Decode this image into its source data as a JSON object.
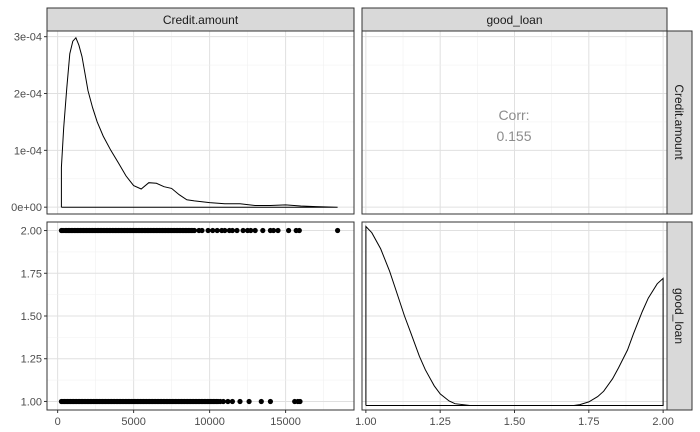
{
  "strip": {
    "col1": "Credit.amount",
    "col2": "good_loan",
    "row1": "Credit.amount",
    "row2": "good_loan"
  },
  "corr": {
    "label": "Corr:",
    "value": "0.155"
  },
  "axes": {
    "density_y_ticks": [
      "0e+00",
      "1e-04",
      "2e-04",
      "3e-04"
    ],
    "scatter_y_ticks": [
      "1.00",
      "1.25",
      "1.50",
      "1.75",
      "2.00"
    ],
    "credit_x_ticks": [
      "0",
      "5000",
      "10000",
      "15000"
    ],
    "goodloan_x_ticks": [
      "1.00",
      "1.25",
      "1.50",
      "1.75",
      "2.00"
    ]
  },
  "chart_data": [
    {
      "type": "line",
      "panel": "Credit.amount vs Credit.amount (density)",
      "x": [
        250,
        400,
        600,
        800,
        1000,
        1200,
        1400,
        1600,
        1800,
        2000,
        2300,
        2600,
        3000,
        3500,
        4000,
        4500,
        5000,
        5500,
        6000,
        6500,
        7000,
        7500,
        8000,
        8500,
        9000,
        10000,
        11000,
        12000,
        13000,
        14000,
        15000,
        16000,
        17000,
        18424
      ],
      "y": [
        7e-05,
        0.00014,
        0.00021,
        0.00027,
        0.000292,
        0.000298,
        0.000285,
        0.000265,
        0.000235,
        0.000205,
        0.000175,
        0.00015,
        0.000125,
        0.0001,
        7.8e-05,
        5.5e-05,
        3.8e-05,
        3.2e-05,
        4.3e-05,
        4.2e-05,
        3.6e-05,
        3.3e-05,
        2.2e-05,
        1.3e-05,
        1.1e-05,
        8e-06,
        6e-06,
        6e-06,
        3e-06,
        3e-06,
        4e-06,
        2e-06,
        1e-06,
        0.0
      ],
      "xlim": [
        -700,
        19500
      ],
      "ylim": [
        -1.2e-05,
        0.00031
      ]
    },
    {
      "type": "scatter",
      "panel": "good_loan vs Credit.amount",
      "series": [
        {
          "y": 2,
          "x": [
            250,
            350,
            500,
            600,
            700,
            800,
            900,
            1000,
            1100,
            1200,
            1300,
            1400,
            1500,
            1600,
            1700,
            1800,
            1900,
            2000,
            2100,
            2200,
            2300,
            2400,
            2500,
            2600,
            2700,
            2800,
            2900,
            3000,
            3100,
            3200,
            3300,
            3400,
            3500,
            3600,
            3700,
            3800,
            3900,
            4000,
            4100,
            4200,
            4300,
            4400,
            4500,
            4600,
            4700,
            4800,
            4900,
            5000,
            5100,
            5200,
            5300,
            5400,
            5500,
            5600,
            5700,
            5800,
            5900,
            6000,
            6100,
            6200,
            6300,
            6400,
            6500,
            6600,
            6700,
            6800,
            6900,
            7000,
            7100,
            7200,
            7300,
            7400,
            7500,
            7600,
            7700,
            7800,
            7900,
            8000,
            8100,
            8200,
            8300,
            8400,
            8500,
            8600,
            8700,
            8800,
            8900,
            9000,
            9300,
            9500,
            9900,
            10200,
            10500,
            10800,
            11000,
            11300,
            11500,
            11800,
            12200,
            12500,
            12700,
            13000,
            13500,
            14000,
            14200,
            14500,
            15200,
            15700,
            15900,
            18424
          ]
        },
        {
          "y": 1,
          "x": [
            250,
            350,
            450,
            550,
            650,
            750,
            850,
            950,
            1050,
            1150,
            1250,
            1350,
            1450,
            1550,
            1650,
            1750,
            1850,
            1950,
            2050,
            2150,
            2250,
            2350,
            2450,
            2550,
            2650,
            2750,
            2850,
            2950,
            3050,
            3150,
            3250,
            3350,
            3450,
            3550,
            3650,
            3750,
            3850,
            3950,
            4050,
            4150,
            4250,
            4350,
            4450,
            4550,
            4650,
            4750,
            4850,
            4950,
            5050,
            5150,
            5250,
            5350,
            5450,
            5550,
            5650,
            5750,
            5850,
            5950,
            6050,
            6150,
            6250,
            6350,
            6450,
            6550,
            6650,
            6750,
            6850,
            6950,
            7050,
            7150,
            7250,
            7350,
            7450,
            7550,
            7650,
            7750,
            7850,
            7950,
            8050,
            8150,
            8250,
            8350,
            8450,
            8550,
            8650,
            8750,
            8850,
            8950,
            9050,
            9150,
            9250,
            9350,
            9450,
            9550,
            9650,
            9750,
            9850,
            9950,
            10050,
            10150,
            10250,
            10350,
            10450,
            10550,
            10700,
            10900,
            11200,
            11500,
            12000,
            12600,
            13400,
            14000,
            15600,
            15800,
            15950
          ]
        }
      ],
      "xlim": [
        -700,
        19500
      ],
      "ylim": [
        0.95,
        2.05
      ]
    },
    {
      "type": "line",
      "panel": "good_loan vs good_loan (density)",
      "x": [
        1.0,
        1.02,
        1.05,
        1.08,
        1.1,
        1.13,
        1.15,
        1.18,
        1.2,
        1.23,
        1.25,
        1.28,
        1.3,
        1.35,
        1.4,
        1.5,
        1.6,
        1.65,
        1.7,
        1.72,
        1.75,
        1.78,
        1.8,
        1.83,
        1.85,
        1.88,
        1.9,
        1.93,
        1.95,
        1.98,
        2.0
      ],
      "y": [
        2.0,
        1.93,
        1.75,
        1.5,
        1.3,
        1.0,
        0.82,
        0.55,
        0.4,
        0.22,
        0.13,
        0.05,
        0.02,
        0.0,
        0.0,
        0.0,
        0.0,
        0.0,
        0.0,
        0.01,
        0.04,
        0.1,
        0.16,
        0.3,
        0.42,
        0.62,
        0.8,
        1.05,
        1.2,
        1.36,
        1.42
      ],
      "xlim": [
        0.987,
        2.013
      ],
      "ylim": [
        -0.05,
        2.05
      ]
    }
  ]
}
